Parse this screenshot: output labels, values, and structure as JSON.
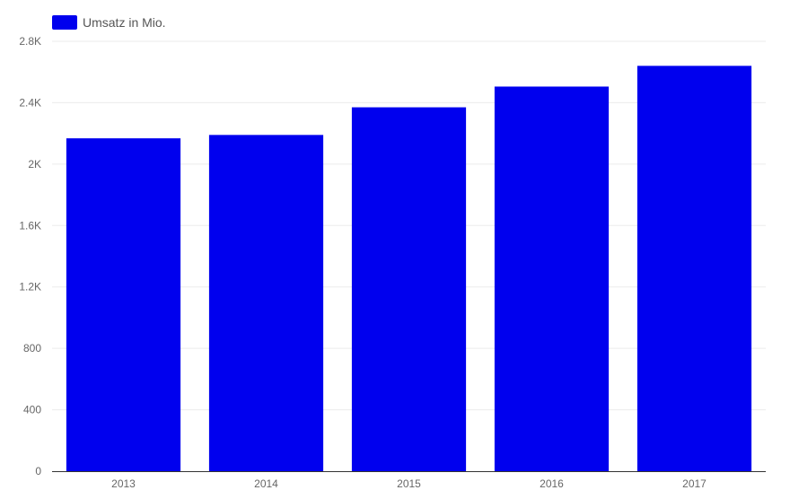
{
  "chart_data": {
    "type": "bar",
    "categories": [
      "2013",
      "2014",
      "2015",
      "2016",
      "2017"
    ],
    "series": [
      {
        "name": "Umsatz in Mio.",
        "values": [
          2168,
          2190,
          2370,
          2505,
          2640
        ],
        "color": "#0000ee"
      }
    ],
    "xlabel": "",
    "ylabel": "",
    "ylim": [
      0,
      2800
    ],
    "yticks": [
      0,
      400,
      800,
      1200,
      1600,
      2000,
      2400,
      2800
    ],
    "ytick_labels": [
      "0",
      "400",
      "800",
      "1.2K",
      "1.6K",
      "2K",
      "2.4K",
      "2.8K"
    ],
    "grid": true,
    "legend_position": "top-left"
  }
}
